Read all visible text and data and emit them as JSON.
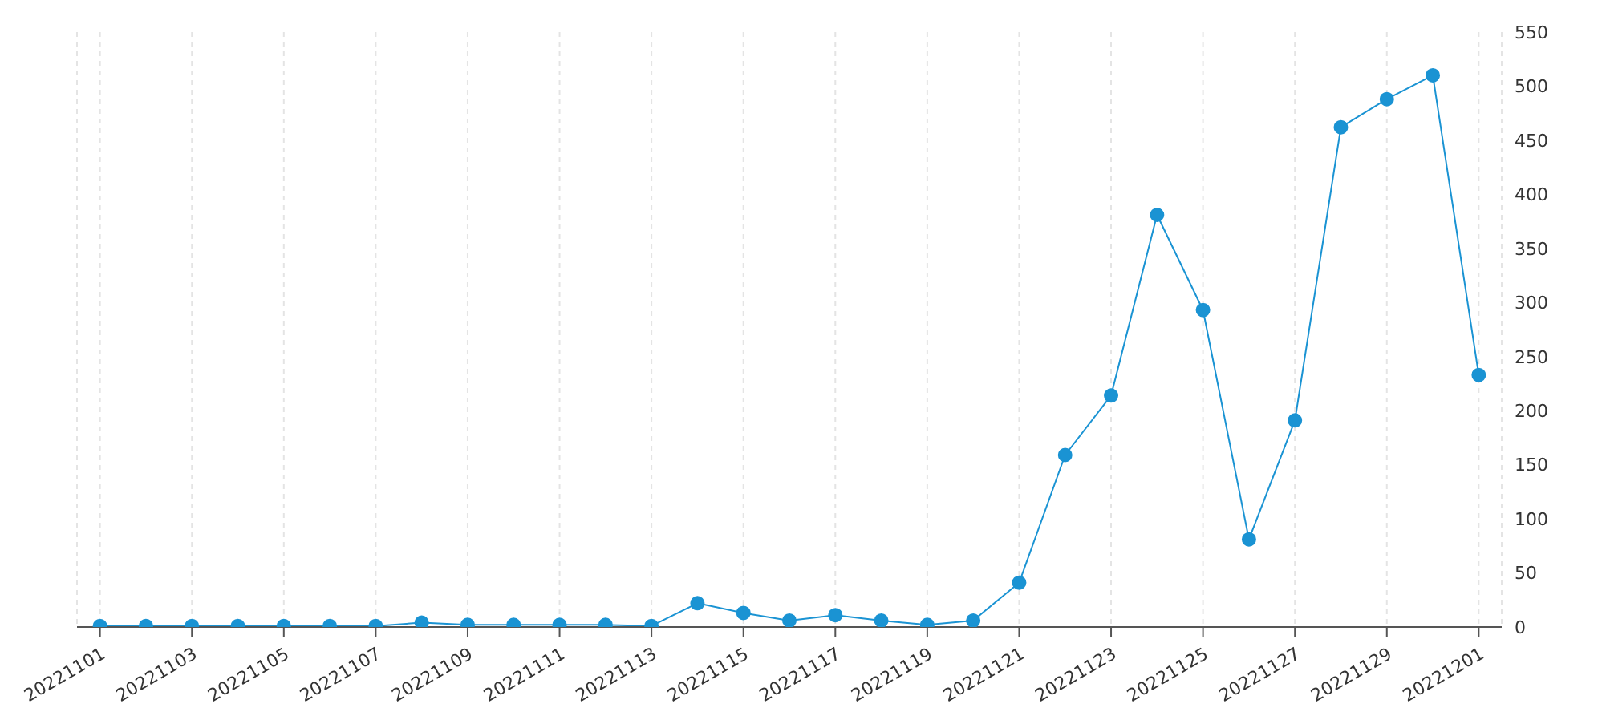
{
  "chart_data": {
    "type": "line",
    "categories": [
      "20221101",
      null,
      "20221103",
      null,
      "20221105",
      null,
      "20221107",
      null,
      "20221109",
      null,
      "20221111",
      null,
      "20221113",
      null,
      "20221115",
      null,
      "20221117",
      null,
      "20221119",
      null,
      "20221121",
      null,
      "20221123",
      null,
      "20221125",
      null,
      "20221127",
      null,
      "20221129",
      null,
      "20221201"
    ],
    "series": [
      {
        "color": "#1a93d3",
        "values": [
          1,
          1,
          1,
          1,
          1,
          1,
          1,
          4,
          2,
          2,
          2,
          2,
          1,
          22,
          13,
          6,
          11,
          6,
          2,
          6,
          41,
          159,
          214,
          381,
          293,
          81,
          191,
          462,
          488,
          510,
          233
        ]
      }
    ],
    "ylim": [
      0,
      550
    ],
    "yticks": [
      0,
      50,
      100,
      150,
      200,
      250,
      300,
      350,
      400,
      450,
      500,
      550
    ],
    "grid": "x",
    "marker": "circle",
    "line_style": "solid",
    "legend": false
  }
}
